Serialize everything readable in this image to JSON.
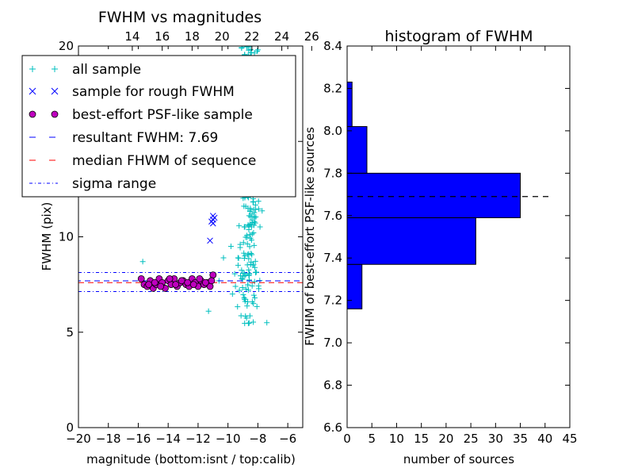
{
  "chart_data": [
    {
      "type": "scatter",
      "title": "FWHM vs magnitudes",
      "xlabel": "magnitude (bottom:isnt / top:calib)",
      "ylabel": "FWHM (pix)",
      "xlim": [
        -20,
        -5
      ],
      "ylim": [
        0,
        20
      ],
      "x_ticks": [
        -20,
        -18,
        -16,
        -14,
        -12,
        -10,
        -8,
        -6
      ],
      "x_tick_labels": [
        "−20",
        "−18",
        "−16",
        "−14",
        "−12",
        "−10",
        "−8",
        "−6"
      ],
      "y_ticks": [
        0,
        5,
        10,
        15,
        20
      ],
      "y_tick_labels": [
        "0",
        "5",
        "10",
        "15",
        "20"
      ],
      "top_ticks": [
        14,
        16,
        18,
        20,
        22,
        24,
        26
      ],
      "top_offset": 30.4,
      "grid": false,
      "legend_position": "upper-left",
      "series": [
        {
          "name": "all sample",
          "marker": "+",
          "color": "#00bfbf",
          "generated_cloud": {
            "count": 330,
            "x_center": -8.6,
            "x_spread": 0.9,
            "y_min": 5.4,
            "y_max": 20.0
          },
          "x": [
            -15.7,
            -11.3,
            -10.6,
            -10.3,
            -9.8,
            -7.4,
            -9.5,
            -9.7,
            -8.3,
            -8.0,
            -9.0,
            -8.5
          ],
          "y": [
            8.7,
            6.1,
            7.7,
            8.9,
            9.5,
            5.5,
            7.4,
            7.0,
            6.5,
            19.8,
            20.0,
            18.5
          ]
        },
        {
          "name": "sample for rough FWHM",
          "marker": "x",
          "color": "#0000ff",
          "x": [
            -11.0,
            -11.0,
            -11.1,
            -11.2,
            -11.0,
            -10.9
          ],
          "y": [
            11.1,
            10.9,
            10.8,
            9.8,
            10.7,
            11.0
          ]
        },
        {
          "name": "best-effort PSF-like sample",
          "marker": "o",
          "color": "#bf00bf",
          "x": [
            -15.8,
            -15.6,
            -15.4,
            -15.2,
            -15.0,
            -14.8,
            -14.6,
            -14.4,
            -14.2,
            -14.0,
            -13.8,
            -13.6,
            -13.4,
            -13.2,
            -13.0,
            -12.8,
            -12.6,
            -12.4,
            -12.2,
            -12.0,
            -11.8,
            -11.6,
            -11.4,
            -11.2,
            -11.0,
            -15.3,
            -14.9,
            -14.5,
            -13.9,
            -13.5,
            -13.1,
            -12.7,
            -12.3,
            -11.9,
            -11.5,
            -11.1
          ],
          "y": [
            7.8,
            7.5,
            7.4,
            7.7,
            7.3,
            7.5,
            7.8,
            7.6,
            7.3,
            7.7,
            7.5,
            7.8,
            7.4,
            7.6,
            7.7,
            7.5,
            7.4,
            7.8,
            7.6,
            7.4,
            7.7,
            7.5,
            7.6,
            7.4,
            8.0,
            7.5,
            7.6,
            7.4,
            7.8,
            7.5,
            7.7,
            7.6,
            7.5,
            7.8,
            7.6,
            7.7
          ]
        }
      ],
      "lines": [
        {
          "name": "resultant FWHM: 7.69",
          "y": 7.69,
          "color": "#0000ff",
          "style": "dashed"
        },
        {
          "name": "median FHWM of sequence",
          "y": 7.6,
          "color": "#ff0000",
          "style": "dashed"
        },
        {
          "name": "sigma range",
          "y": [
            7.13,
            8.13
          ],
          "color": "#0000ff",
          "style": "dashdot"
        }
      ]
    },
    {
      "type": "bar",
      "orientation": "horizontal",
      "title": "histogram of FWHM",
      "xlabel": "number of sources",
      "ylabel": "FWHM of best-effort PSF-like sources",
      "xlim": [
        0,
        45
      ],
      "ylim": [
        6.6,
        8.4
      ],
      "x_ticks": [
        0,
        5,
        10,
        15,
        20,
        25,
        30,
        35,
        40,
        45
      ],
      "y_ticks": [
        6.6,
        6.8,
        7.0,
        7.2,
        7.4,
        7.6,
        7.8,
        8.0,
        8.2,
        8.4
      ],
      "y_tick_labels": [
        "6.6",
        "6.8",
        "7.0",
        "7.2",
        "7.4",
        "7.6",
        "7.8",
        "8.0",
        "8.2",
        "8.4"
      ],
      "bins": [
        {
          "from": 7.16,
          "to": 7.37,
          "count": 3
        },
        {
          "from": 7.37,
          "to": 7.59,
          "count": 26
        },
        {
          "from": 7.59,
          "to": 7.8,
          "count": 35
        },
        {
          "from": 7.8,
          "to": 8.02,
          "count": 4
        },
        {
          "from": 8.02,
          "to": 8.23,
          "count": 1
        }
      ],
      "bar_color": "#0000ff",
      "reference_line": {
        "y": 7.69,
        "x_range": [
          0,
          41.5
        ],
        "style": "dashed",
        "color": "#000000"
      }
    }
  ]
}
